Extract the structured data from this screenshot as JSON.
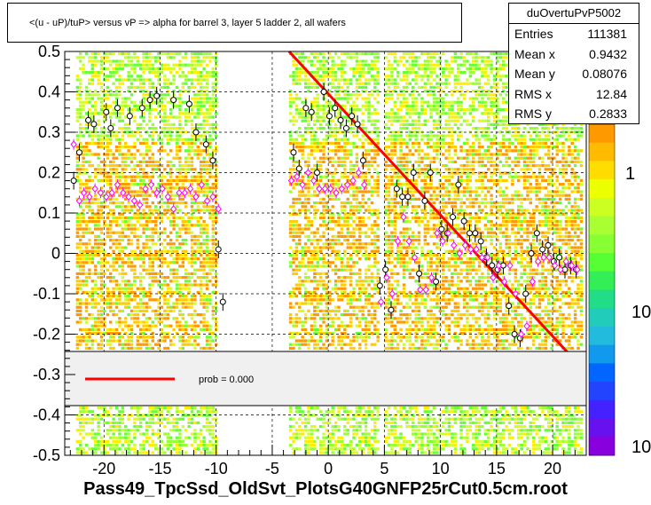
{
  "title": "<(u - uP)/tuP> versus   vP => alpha for barrel 3, layer 5 ladder 2, all wafers",
  "stats": {
    "name": "duOvertuPvP5002",
    "rows": [
      {
        "k": "Entries",
        "v": "111381"
      },
      {
        "k": "Mean x",
        "v": "0.9432"
      },
      {
        "k": "Mean y",
        "v": "0.08076"
      },
      {
        "k": "RMS x",
        "v": "12.84"
      },
      {
        "k": "RMS y",
        "v": "0.2833"
      }
    ]
  },
  "legend": {
    "label": "prob = 0.000",
    "line_color": "#ff0000"
  },
  "file_label": "Pass49_TpcSsd_OldSvt_PlotsG40GNFP25rCut0.5cm.root",
  "chart_data": {
    "type": "scatter",
    "xlim": [
      -23.5,
      23
    ],
    "ylim": [
      -0.5,
      0.5
    ],
    "xticks": [
      -20,
      -15,
      -10,
      -5,
      0,
      5,
      10,
      15,
      20
    ],
    "yticks": [
      -0.5,
      -0.4,
      -0.3,
      -0.2,
      -0.1,
      0,
      0.1,
      0.2,
      0.3,
      0.4,
      0.5
    ],
    "xtick_labels": [
      "-20",
      "-15",
      "-10",
      "-5",
      "0",
      "5",
      "10",
      "15",
      "20"
    ],
    "ytick_labels": [
      "-0.5",
      "-0.4",
      "-0.3",
      "-0.2",
      "-0.1",
      "0",
      "0.1",
      "0.2",
      "0.3",
      "0.4",
      "0.5"
    ],
    "grid": true,
    "heatmap_bands": [
      [
        -22.5,
        -10
      ],
      [
        -3.5,
        4.5
      ],
      [
        5,
        20
      ],
      [
        20,
        22.5
      ]
    ],
    "palette": [
      "#ff9900",
      "#ffcc00",
      "#ccff33",
      "#99ff33",
      "#66ff33",
      "#ffee00"
    ],
    "colorbar_labels": [
      "1",
      "10",
      "10"
    ],
    "fit_line": {
      "x": [
        -3.5,
        21.5
      ],
      "y": [
        0.5,
        -0.25
      ],
      "color": "#ff0000"
    },
    "mean_points": {
      "x": [
        -22.7,
        -22.2,
        -21.8,
        -21.3,
        -20.8,
        -20.3,
        -19.8,
        -19.3,
        -18.8,
        -18.3,
        -17.8,
        -17.3,
        -16.8,
        -16.3,
        -15.8,
        -15.3,
        -14.8,
        -14.3,
        -13.8,
        -13.3,
        -12.8,
        -12.3,
        -11.8,
        -11.3,
        -10.8,
        -10.3,
        -9.8,
        -3.3,
        -2.8,
        -2.3,
        -1.8,
        -1.3,
        -0.8,
        -0.3,
        0.2,
        0.7,
        1.2,
        1.7,
        2.2,
        2.7,
        3.2,
        4.7,
        5.2,
        5.7,
        6.2,
        6.7,
        7.2,
        7.7,
        8.2,
        8.7,
        9.2,
        9.7,
        10.2,
        10.7,
        11.2,
        11.7,
        12.2,
        12.7,
        13.2,
        13.7,
        14.2,
        14.7,
        15.2,
        15.7,
        16.2,
        16.7,
        17.2,
        17.7,
        18.2,
        18.7,
        19.2,
        19.7,
        20.2,
        20.7,
        21.2,
        21.7,
        22.2
      ],
      "y": [
        0.27,
        0.13,
        0.15,
        0.14,
        0.16,
        0.15,
        0.14,
        0.15,
        0.17,
        0.15,
        0.14,
        0.13,
        0.12,
        0.16,
        0.17,
        0.15,
        0.16,
        0.14,
        0.11,
        0.15,
        0.15,
        0.16,
        0.14,
        0.17,
        0.13,
        0.14,
        0.11,
        0.18,
        0.19,
        0.17,
        0.2,
        0.18,
        0.16,
        0.16,
        0.16,
        0.15,
        0.16,
        0.17,
        0.18,
        0.2,
        0.17,
        -0.12,
        -0.06,
        -0.1,
        0.03,
        0.09,
        0.03,
        -0.01,
        -0.09,
        -0.09,
        -0.06,
        0.05,
        0.03,
        0.05,
        0.02,
        0.0,
        0.02,
        0.01,
        0.01,
        -0.01,
        -0.01,
        -0.06,
        -0.03,
        -0.07,
        -0.03,
        -0.1,
        -0.2,
        -0.18,
        -0.07,
        -0.02,
        -0.01,
        -0.01,
        -0.03,
        -0.04,
        -0.02,
        -0.03,
        -0.04
      ]
    },
    "median_points": {
      "x": [
        -22.7,
        -22.2,
        -21.4,
        -20.9,
        -19.8,
        -19.4,
        -18.8,
        -17.7,
        -16.6,
        -15.9,
        -15.3,
        -13.8,
        -12.4,
        -11.8,
        -10.9,
        -10.3,
        -9.8,
        -9.4,
        -3.1,
        -2.6,
        -2.0,
        -1.5,
        -1.0,
        -0.4,
        0.1,
        0.6,
        1.1,
        1.6,
        2.1,
        2.6,
        3.1,
        4.6,
        5.1,
        5.6,
        6.1,
        6.6,
        7.1,
        7.6,
        8.1,
        8.6,
        9.1,
        9.6,
        10.1,
        10.6,
        11.1,
        11.6,
        12.1,
        12.6,
        13.1,
        13.6,
        14.1,
        14.6,
        15.1,
        15.6,
        16.1,
        16.6,
        17.1,
        17.6,
        18.1,
        18.6,
        19.1,
        19.6,
        20.1,
        20.6,
        21.1,
        21.6,
        22.1
      ],
      "y": [
        0.18,
        0.25,
        0.33,
        0.32,
        0.35,
        0.31,
        0.36,
        0.34,
        0.36,
        0.38,
        0.39,
        0.38,
        0.37,
        0.3,
        0.27,
        0.23,
        0.01,
        -0.12,
        0.25,
        0.21,
        0.36,
        0.35,
        0.2,
        0.4,
        0.34,
        0.36,
        0.33,
        0.31,
        0.34,
        0.32,
        0.23,
        -0.08,
        -0.04,
        -0.14,
        0.16,
        0.14,
        0.14,
        0.2,
        -0.05,
        0.13,
        0.2,
        -0.07,
        0.06,
        0.05,
        0.09,
        0.17,
        0.08,
        0.05,
        0.05,
        0.03,
        -0.01,
        -0.03,
        -0.04,
        -0.03,
        -0.13,
        -0.2,
        -0.21,
        -0.1,
        0.0,
        0.05,
        0.01,
        0.02,
        -0.02,
        -0.01,
        -0.04,
        -0.03,
        -0.04
      ]
    }
  }
}
